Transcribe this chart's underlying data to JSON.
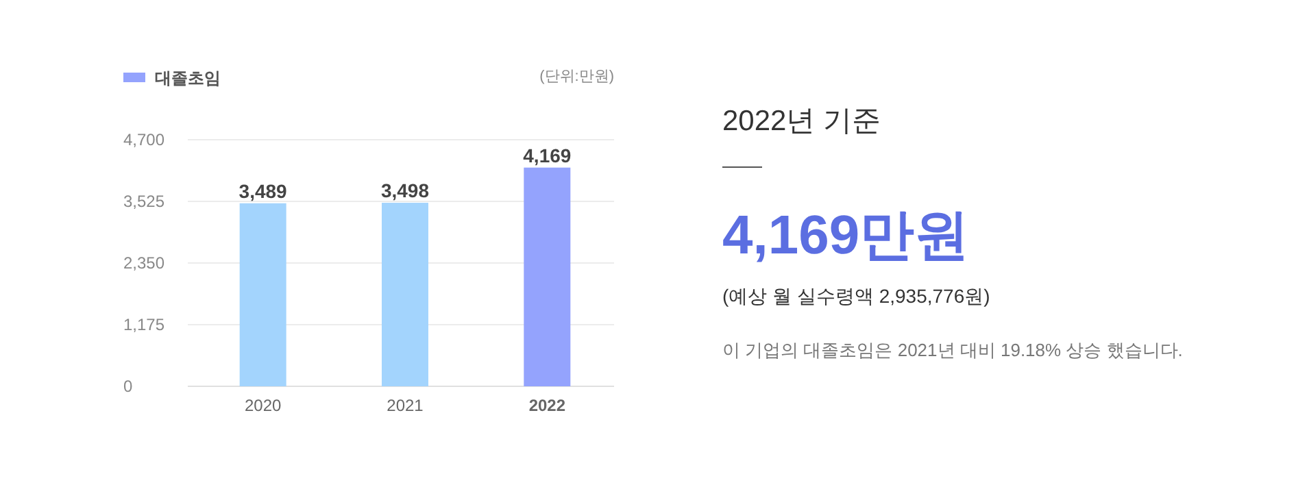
{
  "chart_data": [
    {
      "type": "bar",
      "categories": [
        "2020",
        "2021",
        "2022"
      ],
      "series": [
        {
          "name": "대졸초임",
          "color": "#94a3fd",
          "colors": [
            "#a3d4fd",
            "#a3d4fd",
            "#94a3fd"
          ],
          "values": [
            3489,
            3498,
            4169
          ],
          "value_labels": [
            "3,489",
            "3,498",
            "4,169"
          ]
        }
      ],
      "ylim": [
        0,
        4700
      ],
      "yticks": [
        {
          "value": 0,
          "label": "0"
        },
        {
          "value": 1175,
          "label": "1,175"
        },
        {
          "value": 2350,
          "label": "2,350"
        },
        {
          "value": 3525,
          "label": "3,525"
        },
        {
          "value": 4700,
          "label": "4,700"
        }
      ],
      "grid": "y",
      "legend": "top left",
      "annotations": [
        "(단위:만원)"
      ]
    },
    {
      "type": "other",
      "title": "2022년 기준",
      "annotations": [
        "4,169만원",
        "(예상 월 실수령액 2,935,776원)",
        "이 기업의 대졸초임은 2021년 대비 19.18% 상승 했습니다."
      ]
    }
  ]
}
